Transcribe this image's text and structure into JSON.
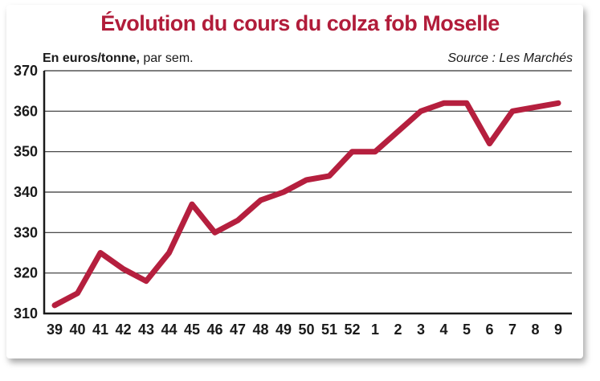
{
  "chart_data": {
    "type": "line",
    "title": "Évolution du cours du colza fob Moselle",
    "unit_label_bold": "En euros/tonne,",
    "unit_label_rest": " par sem.",
    "source": "Source : Les Marchés",
    "categories": [
      "39",
      "40",
      "41",
      "42",
      "43",
      "44",
      "45",
      "46",
      "47",
      "48",
      "49",
      "50",
      "51",
      "52",
      "1",
      "2",
      "3",
      "4",
      "5",
      "6",
      "7",
      "8",
      "9"
    ],
    "series": [
      {
        "values": [
          312,
          315,
          325,
          321,
          318,
          325,
          337,
          330,
          333,
          338,
          340,
          343,
          344,
          350,
          350,
          355,
          360,
          362,
          362,
          352,
          360,
          361,
          362
        ]
      }
    ],
    "ylim": [
      310,
      370
    ],
    "yticks": [
      310,
      320,
      330,
      340,
      350,
      360,
      370
    ],
    "grid": true,
    "line_color": "#b51f3e"
  }
}
